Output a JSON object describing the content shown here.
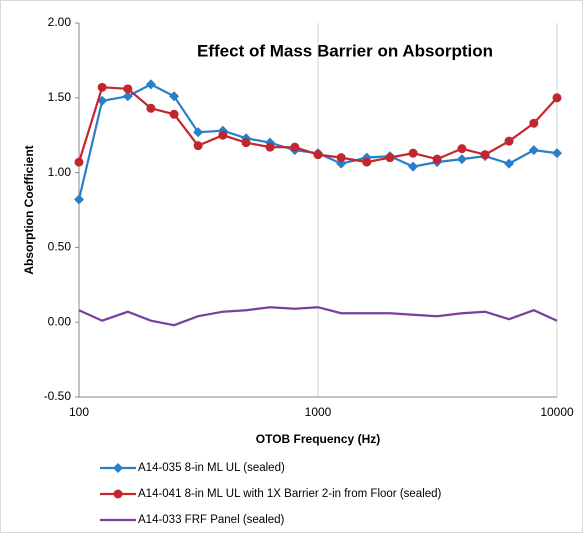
{
  "chart_data": {
    "type": "line",
    "title": "Effect of Mass Barrier on Absorption",
    "xlabel": "OTOB Frequency (Hz)",
    "ylabel": "Absorption Coefficient",
    "x": [
      100,
      125,
      160,
      200,
      250,
      315,
      400,
      500,
      630,
      800,
      1000,
      1250,
      1600,
      2000,
      2500,
      3150,
      4000,
      5000,
      6300,
      8000,
      10000
    ],
    "xscale": "log",
    "xlim": [
      100,
      10000
    ],
    "xticks": [
      100,
      1000,
      10000
    ],
    "ylim": [
      -0.5,
      2.0
    ],
    "yticks": [
      {
        "value": -0.5,
        "label": "-0.50"
      },
      {
        "value": 0,
        "label": "0.00"
      },
      {
        "value": 0.5,
        "label": "0.50"
      },
      {
        "value": 1.0,
        "label": "1.00"
      },
      {
        "value": 1.5,
        "label": "1.50"
      },
      {
        "value": 2.0,
        "label": "2.00"
      }
    ],
    "xgrid": true,
    "legend": "bottom",
    "series": [
      {
        "name": "A14-035 8-in ML UL (sealed)",
        "color": "#2b7ec9",
        "marker": "diamond",
        "values": [
          0.82,
          1.48,
          1.51,
          1.59,
          1.51,
          1.27,
          1.28,
          1.23,
          1.2,
          1.15,
          1.13,
          1.06,
          1.1,
          1.11,
          1.04,
          1.07,
          1.09,
          1.11,
          1.06,
          1.15,
          1.13
        ]
      },
      {
        "name": "A14-041 8-in ML UL with 1X Barrier 2-in from Floor (sealed)",
        "color": "#c1272d",
        "marker": "circle",
        "values": [
          1.07,
          1.57,
          1.56,
          1.43,
          1.39,
          1.18,
          1.25,
          1.2,
          1.17,
          1.17,
          1.12,
          1.1,
          1.07,
          1.1,
          1.13,
          1.09,
          1.16,
          1.12,
          1.21,
          1.33,
          1.5
        ]
      },
      {
        "name": "A14-033 FRF Panel (sealed)",
        "color": "#7a3f9d",
        "marker": null,
        "values": [
          0.08,
          0.01,
          0.07,
          0.01,
          -0.02,
          0.04,
          0.07,
          0.08,
          0.1,
          0.09,
          0.1,
          0.06,
          0.06,
          0.06,
          0.05,
          0.04,
          0.06,
          0.07,
          0.02,
          0.08,
          0.01
        ]
      }
    ]
  }
}
